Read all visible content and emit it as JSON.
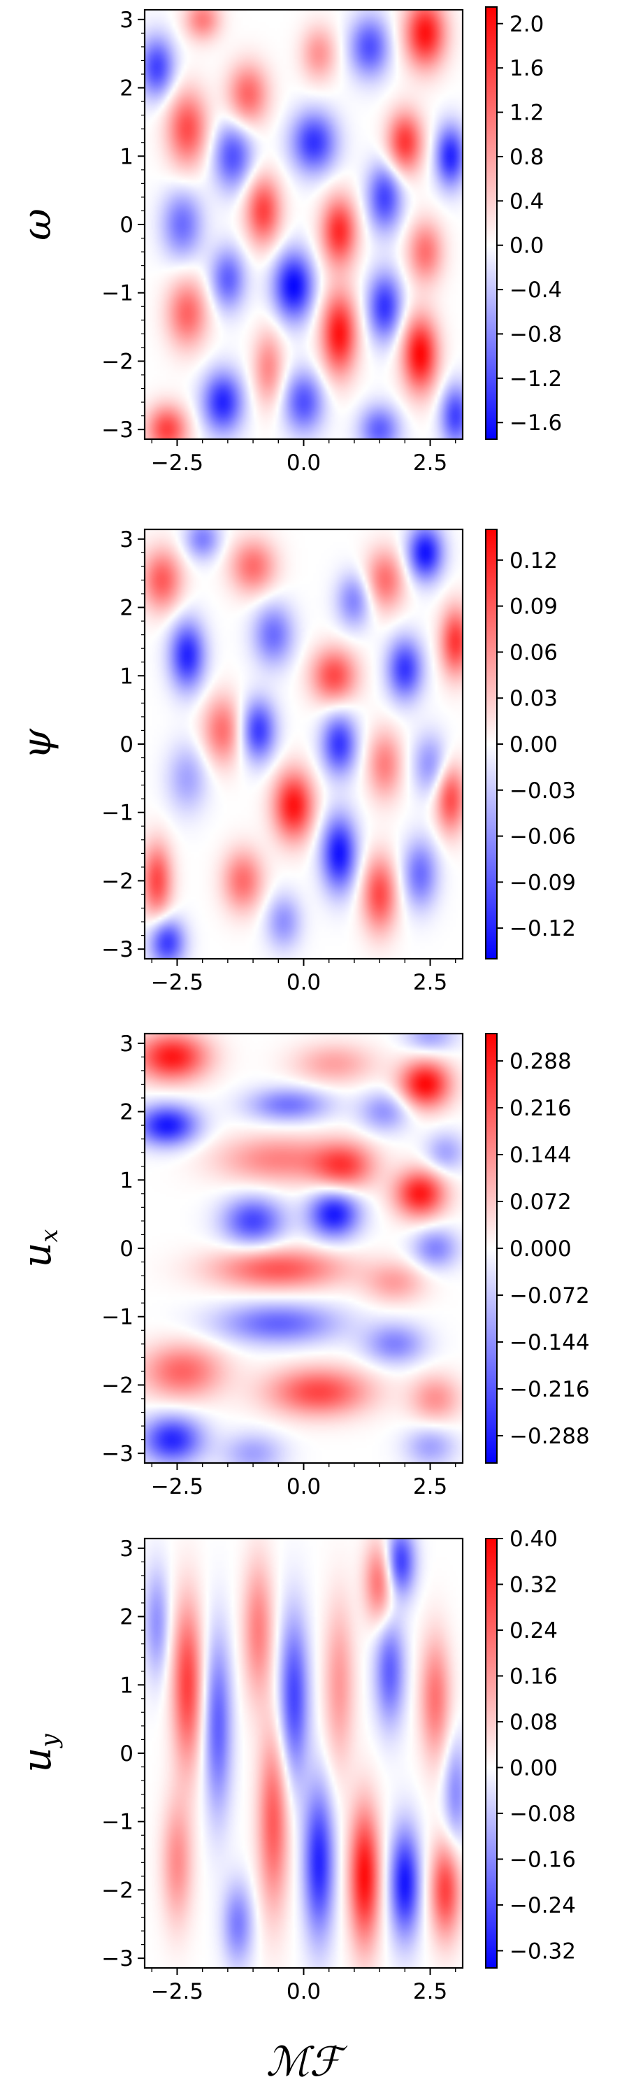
{
  "chart_data": [
    {
      "type": "heatmap",
      "ylabel": "ω",
      "xlabel": "",
      "xlim": [
        -3.14159,
        3.14159
      ],
      "ylim": [
        -3.14159,
        3.14159
      ],
      "x_ticks": [
        -2.5,
        0.0,
        2.5
      ],
      "x_tick_labels": [
        "−2.5",
        "0.0",
        "2.5"
      ],
      "y_ticks": [
        -3,
        -2,
        -1,
        0,
        1,
        2,
        3
      ],
      "y_tick_labels": [
        "−3",
        "−2",
        "−1",
        "0",
        "1",
        "2",
        "3"
      ],
      "colormap": "bwr",
      "colorbar": {
        "range": [
          -1.75,
          2.15
        ],
        "ticks": [
          2.0,
          1.6,
          1.2,
          0.8,
          0.4,
          0.0,
          -0.4,
          -0.8,
          -1.2,
          -1.6
        ],
        "tick_labels": [
          "2.0",
          "1.6",
          "1.2",
          "0.8",
          "0.4",
          "0.0",
          "−0.4",
          "−0.8",
          "−1.2",
          "−1.6"
        ]
      },
      "blobs": [
        {
          "x": -2.3,
          "y": 1.4,
          "v": 1.5,
          "rx": 0.4,
          "ry": 0.55
        },
        {
          "x": -1.1,
          "y": 1.9,
          "v": 1.3,
          "rx": 0.4,
          "ry": 0.45
        },
        {
          "x": 0.3,
          "y": 2.5,
          "v": 0.9,
          "rx": 0.35,
          "ry": 0.4
        },
        {
          "x": 2.4,
          "y": 2.8,
          "v": 2.0,
          "rx": 0.4,
          "ry": 0.5
        },
        {
          "x": 2.0,
          "y": 1.2,
          "v": 1.7,
          "rx": 0.35,
          "ry": 0.45
        },
        {
          "x": -0.8,
          "y": 0.2,
          "v": 1.6,
          "rx": 0.35,
          "ry": 0.5
        },
        {
          "x": 0.7,
          "y": -0.1,
          "v": 1.8,
          "rx": 0.35,
          "ry": 0.5
        },
        {
          "x": 2.4,
          "y": -0.4,
          "v": 1.2,
          "rx": 0.35,
          "ry": 0.45
        },
        {
          "x": -2.3,
          "y": -1.3,
          "v": 1.3,
          "rx": 0.4,
          "ry": 0.5
        },
        {
          "x": -0.7,
          "y": -2.1,
          "v": 1.0,
          "rx": 0.3,
          "ry": 0.55
        },
        {
          "x": 0.7,
          "y": -1.6,
          "v": 2.0,
          "rx": 0.35,
          "ry": 0.6
        },
        {
          "x": 2.3,
          "y": -1.9,
          "v": 2.1,
          "rx": 0.35,
          "ry": 0.55
        },
        {
          "x": -2.7,
          "y": -3.0,
          "v": 1.6,
          "rx": 0.4,
          "ry": 0.35
        },
        {
          "x": -2.0,
          "y": 3.0,
          "v": 1.1,
          "rx": 0.35,
          "ry": 0.3
        },
        {
          "x": -2.9,
          "y": 2.3,
          "v": -1.3,
          "rx": 0.35,
          "ry": 0.45
        },
        {
          "x": -1.4,
          "y": 1.0,
          "v": -1.2,
          "rx": 0.4,
          "ry": 0.5
        },
        {
          "x": 0.2,
          "y": 1.2,
          "v": -1.4,
          "rx": 0.45,
          "ry": 0.45
        },
        {
          "x": 1.3,
          "y": 2.6,
          "v": -1.2,
          "rx": 0.4,
          "ry": 0.45
        },
        {
          "x": -2.4,
          "y": 0.0,
          "v": -1.0,
          "rx": 0.4,
          "ry": 0.5
        },
        {
          "x": -0.2,
          "y": -0.9,
          "v": -1.7,
          "rx": 0.4,
          "ry": 0.5
        },
        {
          "x": 1.6,
          "y": 0.4,
          "v": -1.3,
          "rx": 0.35,
          "ry": 0.5
        },
        {
          "x": 2.9,
          "y": 1.0,
          "v": -1.5,
          "rx": 0.3,
          "ry": 0.45
        },
        {
          "x": -1.5,
          "y": -0.8,
          "v": -1.1,
          "rx": 0.35,
          "ry": 0.45
        },
        {
          "x": 1.6,
          "y": -1.2,
          "v": -1.4,
          "rx": 0.35,
          "ry": 0.5
        },
        {
          "x": -1.6,
          "y": -2.6,
          "v": -1.5,
          "rx": 0.4,
          "ry": 0.45
        },
        {
          "x": 0.0,
          "y": -2.6,
          "v": -1.2,
          "rx": 0.4,
          "ry": 0.45
        },
        {
          "x": 1.5,
          "y": -3.0,
          "v": -1.1,
          "rx": 0.4,
          "ry": 0.35
        },
        {
          "x": 3.0,
          "y": -2.8,
          "v": -1.3,
          "rx": 0.3,
          "ry": 0.45
        }
      ]
    },
    {
      "type": "heatmap",
      "ylabel": "ψ",
      "xlabel": "",
      "xlim": [
        -3.14159,
        3.14159
      ],
      "ylim": [
        -3.14159,
        3.14159
      ],
      "x_ticks": [
        -2.5,
        0.0,
        2.5
      ],
      "x_tick_labels": [
        "−2.5",
        "0.0",
        "2.5"
      ],
      "y_ticks": [
        -3,
        -2,
        -1,
        0,
        1,
        2,
        3
      ],
      "y_tick_labels": [
        "−3",
        "−2",
        "−1",
        "0",
        "1",
        "2",
        "3"
      ],
      "colormap": "bwr",
      "colorbar": {
        "range": [
          -0.14,
          0.14
        ],
        "ticks": [
          0.12,
          0.09,
          0.06,
          0.03,
          0.0,
          -0.03,
          -0.06,
          -0.09,
          -0.12
        ],
        "tick_labels": [
          "0.12",
          "0.09",
          "0.06",
          "0.03",
          "0.00",
          "−0.03",
          "−0.06",
          "−0.09",
          "−0.12"
        ]
      },
      "blobs": [
        {
          "x": -2.8,
          "y": 2.4,
          "v": 0.09,
          "rx": 0.4,
          "ry": 0.45
        },
        {
          "x": -1.0,
          "y": 2.6,
          "v": 0.08,
          "rx": 0.45,
          "ry": 0.4
        },
        {
          "x": 0.6,
          "y": 1.0,
          "v": 0.1,
          "rx": 0.45,
          "ry": 0.4
        },
        {
          "x": 1.6,
          "y": 2.4,
          "v": 0.08,
          "rx": 0.4,
          "ry": 0.45
        },
        {
          "x": 3.0,
          "y": 1.5,
          "v": 0.11,
          "rx": 0.3,
          "ry": 0.5
        },
        {
          "x": -1.6,
          "y": 0.2,
          "v": 0.08,
          "rx": 0.4,
          "ry": 0.5
        },
        {
          "x": -0.2,
          "y": -0.9,
          "v": 0.13,
          "rx": 0.4,
          "ry": 0.5
        },
        {
          "x": 1.6,
          "y": -0.3,
          "v": 0.07,
          "rx": 0.35,
          "ry": 0.5
        },
        {
          "x": 2.9,
          "y": -0.8,
          "v": 0.1,
          "rx": 0.3,
          "ry": 0.5
        },
        {
          "x": -2.9,
          "y": -2.0,
          "v": 0.1,
          "rx": 0.3,
          "ry": 0.55
        },
        {
          "x": -1.2,
          "y": -2.0,
          "v": 0.08,
          "rx": 0.4,
          "ry": 0.45
        },
        {
          "x": 1.5,
          "y": -2.2,
          "v": 0.1,
          "rx": 0.35,
          "ry": 0.55
        },
        {
          "x": -2.3,
          "y": 1.3,
          "v": -0.12,
          "rx": 0.35,
          "ry": 0.5
        },
        {
          "x": -0.6,
          "y": 1.6,
          "v": -0.08,
          "rx": 0.4,
          "ry": 0.45
        },
        {
          "x": 1.0,
          "y": 2.1,
          "v": -0.07,
          "rx": 0.35,
          "ry": 0.4
        },
        {
          "x": 2.4,
          "y": 2.8,
          "v": -0.13,
          "rx": 0.35,
          "ry": 0.4
        },
        {
          "x": 2.0,
          "y": 1.1,
          "v": -0.11,
          "rx": 0.35,
          "ry": 0.45
        },
        {
          "x": -0.9,
          "y": 0.2,
          "v": -0.11,
          "rx": 0.35,
          "ry": 0.45
        },
        {
          "x": 0.7,
          "y": 0.0,
          "v": -0.11,
          "rx": 0.35,
          "ry": 0.45
        },
        {
          "x": 2.5,
          "y": -0.3,
          "v": -0.06,
          "rx": 0.35,
          "ry": 0.45
        },
        {
          "x": -2.3,
          "y": -0.5,
          "v": -0.05,
          "rx": 0.4,
          "ry": 0.5
        },
        {
          "x": 0.7,
          "y": -1.6,
          "v": -0.13,
          "rx": 0.35,
          "ry": 0.55
        },
        {
          "x": 2.3,
          "y": -1.9,
          "v": -0.08,
          "rx": 0.35,
          "ry": 0.5
        },
        {
          "x": -2.7,
          "y": -2.9,
          "v": -0.11,
          "rx": 0.35,
          "ry": 0.35
        },
        {
          "x": -0.4,
          "y": -2.6,
          "v": -0.06,
          "rx": 0.35,
          "ry": 0.4
        },
        {
          "x": -2.0,
          "y": 3.0,
          "v": -0.07,
          "rx": 0.35,
          "ry": 0.3
        }
      ]
    },
    {
      "type": "heatmap",
      "ylabel": "u_x",
      "xlabel": "",
      "xlim": [
        -3.14159,
        3.14159
      ],
      "ylim": [
        -3.14159,
        3.14159
      ],
      "x_ticks": [
        -2.5,
        0.0,
        2.5
      ],
      "x_tick_labels": [
        "−2.5",
        "0.0",
        "2.5"
      ],
      "y_ticks": [
        -3,
        -2,
        -1,
        0,
        1,
        2,
        3
      ],
      "y_tick_labels": [
        "−3",
        "−2",
        "−1",
        "0",
        "1",
        "2",
        "3"
      ],
      "colormap": "bwr",
      "colorbar": {
        "range": [
          -0.33,
          0.33
        ],
        "ticks": [
          0.288,
          0.216,
          0.144,
          0.072,
          0.0,
          -0.072,
          -0.144,
          -0.216,
          -0.288
        ],
        "tick_labels": [
          "0.288",
          "0.216",
          "0.144",
          "0.072",
          "0.000",
          "−0.072",
          "−0.144",
          "−0.216",
          "−0.288"
        ]
      },
      "blobs": [
        {
          "x": -2.6,
          "y": 2.8,
          "v": 0.3,
          "rx": 0.7,
          "ry": 0.35
        },
        {
          "x": 0.6,
          "y": 2.7,
          "v": 0.12,
          "rx": 0.8,
          "ry": 0.3
        },
        {
          "x": 2.4,
          "y": 2.4,
          "v": 0.32,
          "rx": 0.5,
          "ry": 0.35
        },
        {
          "x": -0.5,
          "y": 1.3,
          "v": 0.16,
          "rx": 1.2,
          "ry": 0.35
        },
        {
          "x": 0.8,
          "y": 1.2,
          "v": 0.22,
          "rx": 0.6,
          "ry": 0.35
        },
        {
          "x": 2.3,
          "y": 0.8,
          "v": 0.3,
          "rx": 0.5,
          "ry": 0.35
        },
        {
          "x": -0.5,
          "y": -0.3,
          "v": 0.22,
          "rx": 1.3,
          "ry": 0.3
        },
        {
          "x": 1.8,
          "y": -0.5,
          "v": 0.12,
          "rx": 0.6,
          "ry": 0.3
        },
        {
          "x": -2.4,
          "y": -1.8,
          "v": 0.2,
          "rx": 0.8,
          "ry": 0.4
        },
        {
          "x": 0.3,
          "y": -2.1,
          "v": 0.24,
          "rx": 1.0,
          "ry": 0.35
        },
        {
          "x": 2.6,
          "y": -2.2,
          "v": 0.14,
          "rx": 0.5,
          "ry": 0.35
        },
        {
          "x": -2.7,
          "y": 1.8,
          "v": -0.3,
          "rx": 0.6,
          "ry": 0.3
        },
        {
          "x": -0.3,
          "y": 2.1,
          "v": -0.18,
          "rx": 0.8,
          "ry": 0.25
        },
        {
          "x": 1.6,
          "y": 2.0,
          "v": -0.14,
          "rx": 0.5,
          "ry": 0.3
        },
        {
          "x": 2.8,
          "y": 1.4,
          "v": -0.12,
          "rx": 0.4,
          "ry": 0.3
        },
        {
          "x": -1.0,
          "y": 0.4,
          "v": -0.24,
          "rx": 0.6,
          "ry": 0.35
        },
        {
          "x": 0.6,
          "y": 0.5,
          "v": -0.3,
          "rx": 0.5,
          "ry": 0.35
        },
        {
          "x": 2.6,
          "y": 0.0,
          "v": -0.16,
          "rx": 0.45,
          "ry": 0.3
        },
        {
          "x": -0.5,
          "y": -1.1,
          "v": -0.2,
          "rx": 1.2,
          "ry": 0.3
        },
        {
          "x": 1.8,
          "y": -1.4,
          "v": -0.16,
          "rx": 0.6,
          "ry": 0.3
        },
        {
          "x": -2.6,
          "y": -2.8,
          "v": -0.28,
          "rx": 0.6,
          "ry": 0.35
        },
        {
          "x": -1.0,
          "y": -3.0,
          "v": -0.12,
          "rx": 0.6,
          "ry": 0.3
        },
        {
          "x": 2.5,
          "y": -2.9,
          "v": -0.12,
          "rx": 0.5,
          "ry": 0.3
        },
        {
          "x": 2.5,
          "y": 3.1,
          "v": -0.12,
          "rx": 0.5,
          "ry": 0.25
        }
      ]
    },
    {
      "type": "heatmap",
      "ylabel": "u_y",
      "xlabel": "ℳℱ",
      "xlim": [
        -3.14159,
        3.14159
      ],
      "ylim": [
        -3.14159,
        3.14159
      ],
      "x_ticks": [
        -2.5,
        0.0,
        2.5
      ],
      "x_tick_labels": [
        "−2.5",
        "0.0",
        "2.5"
      ],
      "y_ticks": [
        -3,
        -2,
        -1,
        0,
        1,
        2,
        3
      ],
      "y_tick_labels": [
        "−3",
        "−2",
        "−1",
        "0",
        "1",
        "2",
        "3"
      ],
      "colormap": "bwr",
      "colorbar": {
        "range": [
          -0.35,
          0.4
        ],
        "ticks": [
          0.4,
          0.32,
          0.24,
          0.16,
          0.08,
          0.0,
          -0.08,
          -0.16,
          -0.24,
          -0.32
        ],
        "tick_labels": [
          "0.40",
          "0.32",
          "0.24",
          "0.16",
          "0.08",
          "0.00",
          "−0.08",
          "−0.16",
          "−0.24",
          "−0.32"
        ]
      },
      "blobs": [
        {
          "x": -2.3,
          "y": 1.0,
          "v": 0.3,
          "rx": 0.3,
          "ry": 1.2
        },
        {
          "x": -2.5,
          "y": -1.6,
          "v": 0.18,
          "rx": 0.3,
          "ry": 0.9
        },
        {
          "x": -0.9,
          "y": 1.8,
          "v": 0.2,
          "rx": 0.3,
          "ry": 1.0
        },
        {
          "x": -0.6,
          "y": -1.0,
          "v": 0.26,
          "rx": 0.3,
          "ry": 1.3
        },
        {
          "x": 0.7,
          "y": 1.0,
          "v": 0.16,
          "rx": 0.3,
          "ry": 1.2
        },
        {
          "x": 1.2,
          "y": -1.8,
          "v": 0.38,
          "rx": 0.3,
          "ry": 1.0
        },
        {
          "x": 1.5,
          "y": 2.5,
          "v": 0.24,
          "rx": 0.3,
          "ry": 0.6
        },
        {
          "x": 2.6,
          "y": 0.8,
          "v": 0.22,
          "rx": 0.3,
          "ry": 0.9
        },
        {
          "x": 2.8,
          "y": -2.0,
          "v": 0.3,
          "rx": 0.3,
          "ry": 0.7
        },
        {
          "x": -1.7,
          "y": 0.4,
          "v": -0.22,
          "rx": 0.28,
          "ry": 1.3
        },
        {
          "x": -2.9,
          "y": 1.9,
          "v": -0.15,
          "rx": 0.25,
          "ry": 0.8
        },
        {
          "x": -0.2,
          "y": 0.8,
          "v": -0.26,
          "rx": 0.3,
          "ry": 1.2
        },
        {
          "x": 0.3,
          "y": -1.6,
          "v": -0.3,
          "rx": 0.3,
          "ry": 1.1
        },
        {
          "x": 1.7,
          "y": 1.2,
          "v": -0.22,
          "rx": 0.3,
          "ry": 0.8
        },
        {
          "x": 1.9,
          "y": 2.8,
          "v": -0.28,
          "rx": 0.3,
          "ry": 0.5
        },
        {
          "x": 2.0,
          "y": -1.9,
          "v": -0.32,
          "rx": 0.3,
          "ry": 0.8
        },
        {
          "x": -1.3,
          "y": -2.5,
          "v": -0.18,
          "rx": 0.3,
          "ry": 0.6
        },
        {
          "x": 3.0,
          "y": -0.6,
          "v": -0.16,
          "rx": 0.25,
          "ry": 0.8
        }
      ]
    }
  ]
}
